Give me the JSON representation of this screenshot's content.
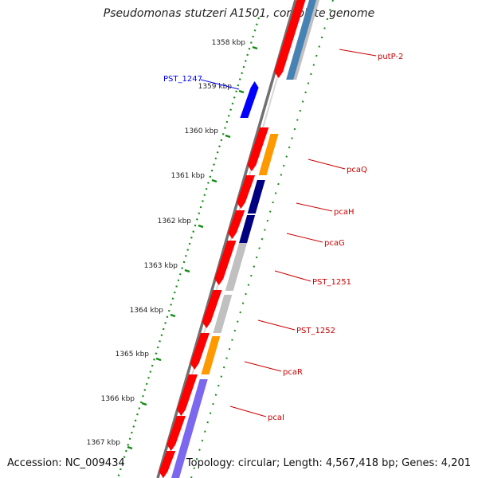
{
  "title": "Pseudomonas stutzeri A1501, complete genome",
  "accession": "Accession: NC_009434",
  "topology": "Topology: circular; Length: 4,567,418 bp; Genes: 4,201",
  "colors": {
    "ruler": "#138a13",
    "backbone": "#707070",
    "cds": "#ff0000",
    "forward_label": "#0000ff",
    "reverse_label": "#cc0000",
    "orange": "#ff9900",
    "navy": "#000080",
    "gray": "#c0c0c0",
    "purple": "#7b68ee",
    "steel": "#4682b4",
    "blue": "#0000ff"
  },
  "ticks": [
    {
      "label": "1358 kbp"
    },
    {
      "label": "1359 kbp"
    },
    {
      "label": "1360 kbp"
    },
    {
      "label": "1361 kbp"
    },
    {
      "label": "1362 kbp"
    },
    {
      "label": "1363 kbp"
    },
    {
      "label": "1364 kbp"
    },
    {
      "label": "1365 kbp"
    },
    {
      "label": "1366 kbp"
    },
    {
      "label": "1367 kbp"
    }
  ],
  "genes": [
    {
      "name": "putP-2",
      "strand": "reverse",
      "category_color": "steel"
    },
    {
      "name": "PST_1247",
      "strand": "forward",
      "category_color": "blue"
    },
    {
      "name": "pcaQ",
      "strand": "reverse",
      "category_color": "orange"
    },
    {
      "name": "pcaH",
      "strand": "reverse",
      "category_color": "navy"
    },
    {
      "name": "pcaG",
      "strand": "reverse",
      "category_color": "navy"
    },
    {
      "name": "PST_1251",
      "strand": "reverse",
      "category_color": "gray"
    },
    {
      "name": "PST_1252",
      "strand": "reverse",
      "category_color": "gray"
    },
    {
      "name": "pcaR",
      "strand": "reverse",
      "category_color": "orange"
    },
    {
      "name": "pcaI",
      "strand": "reverse",
      "category_color": "purple"
    }
  ]
}
